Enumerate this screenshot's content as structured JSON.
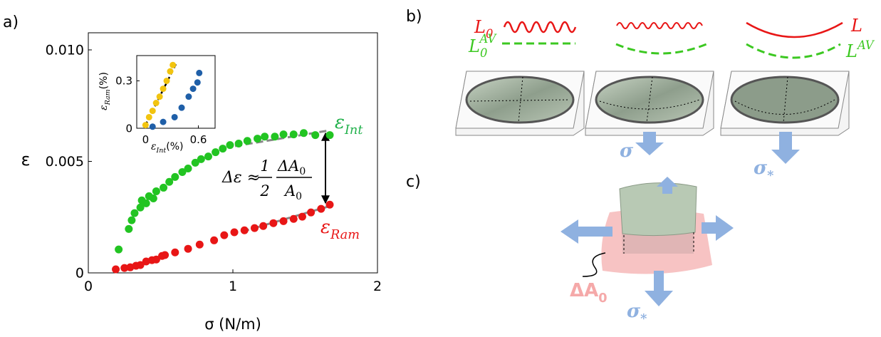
{
  "panels": {
    "a": "a)",
    "b": "b)",
    "c": "c)"
  },
  "chart_data": [
    {
      "type": "scatter",
      "xlabel": "σ (N/m)",
      "ylabel": "ε",
      "xlim": [
        0,
        2
      ],
      "xticks": [
        0,
        1,
        2
      ],
      "ylim": [
        0,
        0.01
      ],
      "yticks": [
        0,
        0.005,
        {
          "value": 0.01,
          "label": "0.010"
        }
      ],
      "series": [
        {
          "color": "#22c422",
          "x": [
            0.21,
            0.28,
            0.3,
            0.32,
            0.36,
            0.37,
            0.4,
            0.42,
            0.45,
            0.47,
            0.52,
            0.56,
            0.6,
            0.65,
            0.69,
            0.74,
            0.78,
            0.83,
            0.88,
            0.93,
            0.98,
            1.04,
            1.1,
            1.17,
            1.22,
            1.29,
            1.35,
            1.42,
            1.49,
            1.57,
            1.67
          ],
          "values": [
            0.00105,
            0.00197,
            0.00236,
            0.00268,
            0.00293,
            0.00325,
            0.00312,
            0.00344,
            0.00334,
            0.00366,
            0.00382,
            0.00408,
            0.0043,
            0.00452,
            0.00468,
            0.00494,
            0.0051,
            0.00522,
            0.00541,
            0.00557,
            0.00573,
            0.0058,
            0.00592,
            0.00602,
            0.00611,
            0.00611,
            0.00621,
            0.00621,
            0.00627,
            0.00618,
            0.00618
          ]
        },
        {
          "color": "#e81616",
          "x": [
            0.19,
            0.25,
            0.29,
            0.33,
            0.36,
            0.4,
            0.44,
            0.47,
            0.51,
            0.53,
            0.6,
            0.69,
            0.77,
            0.87,
            0.94,
            1.01,
            1.08,
            1.15,
            1.21,
            1.28,
            1.35,
            1.42,
            1.48,
            1.54,
            1.61,
            1.67
          ],
          "values": [
            0.00016,
            0.00022,
            0.00025,
            0.00032,
            0.00035,
            0.00051,
            0.00057,
            0.0006,
            0.00076,
            0.0008,
            0.00092,
            0.00108,
            0.00127,
            0.00146,
            0.00169,
            0.00182,
            0.00191,
            0.00201,
            0.0021,
            0.00223,
            0.00232,
            0.00242,
            0.00252,
            0.00271,
            0.00287,
            0.00306
          ]
        }
      ],
      "annotations": {
        "int": {
          "text": "ε",
          "sub": "Int"
        },
        "ram": {
          "text": "ε",
          "sub": "Ram"
        },
        "formula": {
          "lhs": "Δε ≈",
          "num1": "1",
          "den1": "2",
          "num2": "ΔA",
          "num2_sub": "0",
          "den2": "A",
          "den2_sub": "0"
        }
      }
    },
    {
      "type": "scatter",
      "xlabel": {
        "text": "ε",
        "sub": "Int",
        "rest": "(%)"
      },
      "ylabel": {
        "text": "ε",
        "sub": "Ram",
        "rest": "(%)"
      },
      "xlim": [
        -0.1,
        0.79
      ],
      "xticks": [
        0,
        0.6
      ],
      "ylim": [
        0,
        0.46
      ],
      "yticks": [
        0,
        0.3
      ],
      "series": [
        {
          "color": "#f2c40f",
          "x": [
            0,
            0.04,
            0.08,
            0.12,
            0.16,
            0.2,
            0.24,
            0.28,
            0.31
          ],
          "values": [
            0.02,
            0.07,
            0.11,
            0.16,
            0.2,
            0.25,
            0.3,
            0.36,
            0.4
          ]
        },
        {
          "color": "#1f5fa8",
          "x": [
            0.08,
            0.2,
            0.33,
            0.41,
            0.49,
            0.54,
            0.59,
            0.61
          ],
          "values": [
            0.01,
            0.04,
            0.07,
            0.13,
            0.2,
            0.25,
            0.29,
            0.35
          ]
        }
      ]
    }
  ],
  "diagram_b": {
    "l0": {
      "text": "L",
      "sub": "0"
    },
    "l0av": {
      "text": "L",
      "sub": "0",
      "sup": "AV"
    },
    "l": {
      "text": "L"
    },
    "lav": {
      "text": "L",
      "sup": "AV"
    },
    "sigma": {
      "text": "σ"
    },
    "sigma_star": {
      "text": "σ",
      "sub": "*"
    }
  },
  "diagram_c": {
    "delta_a0": {
      "text": "ΔA",
      "sub": "0"
    },
    "sigma_star": {
      "text": "σ",
      "sub": "*"
    }
  }
}
